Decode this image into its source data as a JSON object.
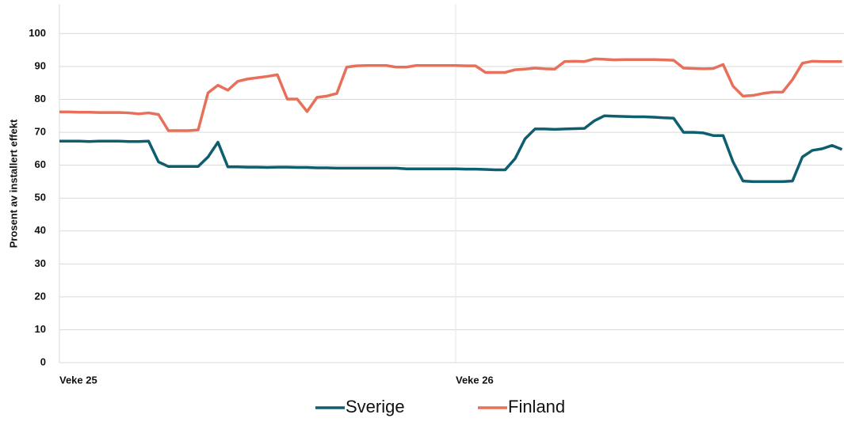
{
  "chart_data": {
    "type": "line",
    "y_label": "Prosent av installert effekt",
    "categories": [
      "Veke 25",
      null,
      null,
      null,
      null,
      null,
      null,
      null,
      null,
      null,
      null,
      null,
      null,
      null,
      null,
      null,
      null,
      null,
      null,
      null,
      null,
      null,
      null,
      null,
      null,
      null,
      null,
      null,
      null,
      null,
      null,
      null,
      null,
      null,
      null,
      null,
      null,
      null,
      null,
      null,
      "Veke 26",
      null,
      null,
      null,
      null,
      null,
      null,
      null,
      null,
      null,
      null,
      null,
      null,
      null,
      null,
      null,
      null,
      null,
      null,
      null,
      null,
      null,
      null,
      null,
      null,
      null,
      null,
      null,
      null,
      null,
      null,
      null,
      null,
      null,
      null,
      null,
      null,
      null,
      null,
      null
    ],
    "series": [
      {
        "name": "Sverige",
        "color": "#0d5f70",
        "values": [
          67.3,
          67.3,
          67.3,
          67.2,
          67.3,
          67.3,
          67.3,
          67.2,
          67.2,
          67.3,
          61,
          59.6,
          59.6,
          59.6,
          59.6,
          62.5,
          67,
          59.5,
          59.5,
          59.4,
          59.4,
          59.3,
          59.4,
          59.4,
          59.3,
          59.3,
          59.2,
          59.2,
          59.1,
          59.1,
          59.1,
          59.1,
          59.1,
          59.1,
          59.1,
          58.9,
          58.9,
          58.9,
          58.9,
          58.9,
          58.9,
          58.8,
          58.8,
          58.7,
          58.6,
          58.6,
          62,
          68,
          71,
          71,
          70.9,
          71,
          71.1,
          71.2,
          73.5,
          75,
          74.9,
          74.8,
          74.7,
          74.7,
          74.6,
          74.4,
          74.3,
          70,
          70,
          69.8,
          69,
          69,
          61,
          55.2,
          55,
          55,
          55,
          55,
          55.2,
          62.5,
          64.5,
          65,
          66,
          64.8
        ]
      },
      {
        "name": "Finland",
        "color": "#e8705a",
        "values": [
          76.2,
          76.2,
          76.1,
          76.1,
          76.0,
          76.0,
          76.0,
          75.9,
          75.6,
          75.9,
          75.4,
          70.5,
          70.5,
          70.5,
          70.7,
          82,
          84.3,
          82.8,
          85.5,
          86.2,
          86.6,
          87,
          87.5,
          80.1,
          80.1,
          76.3,
          80.6,
          81,
          81.8,
          89.8,
          90.2,
          90.3,
          90.3,
          90.3,
          89.8,
          89.8,
          90.3,
          90.3,
          90.3,
          90.3,
          90.3,
          90.2,
          90.2,
          88.2,
          88.2,
          88.2,
          89,
          89.2,
          89.5,
          89.3,
          89.2,
          91.5,
          91.6,
          91.5,
          92.3,
          92.2,
          92,
          92.1,
          92.1,
          92.1,
          92.1,
          92,
          91.9,
          89.5,
          89.4,
          89.3,
          89.4,
          90.6,
          84,
          81,
          81.2,
          81.8,
          82.2,
          82.2,
          86,
          91,
          91.6,
          91.5,
          91.5,
          91.5
        ]
      }
    ],
    "ylim": [
      0,
      109
    ],
    "yticks": [
      0,
      10,
      20,
      30,
      40,
      50,
      60,
      70,
      80,
      90,
      100
    ],
    "grid": true
  }
}
